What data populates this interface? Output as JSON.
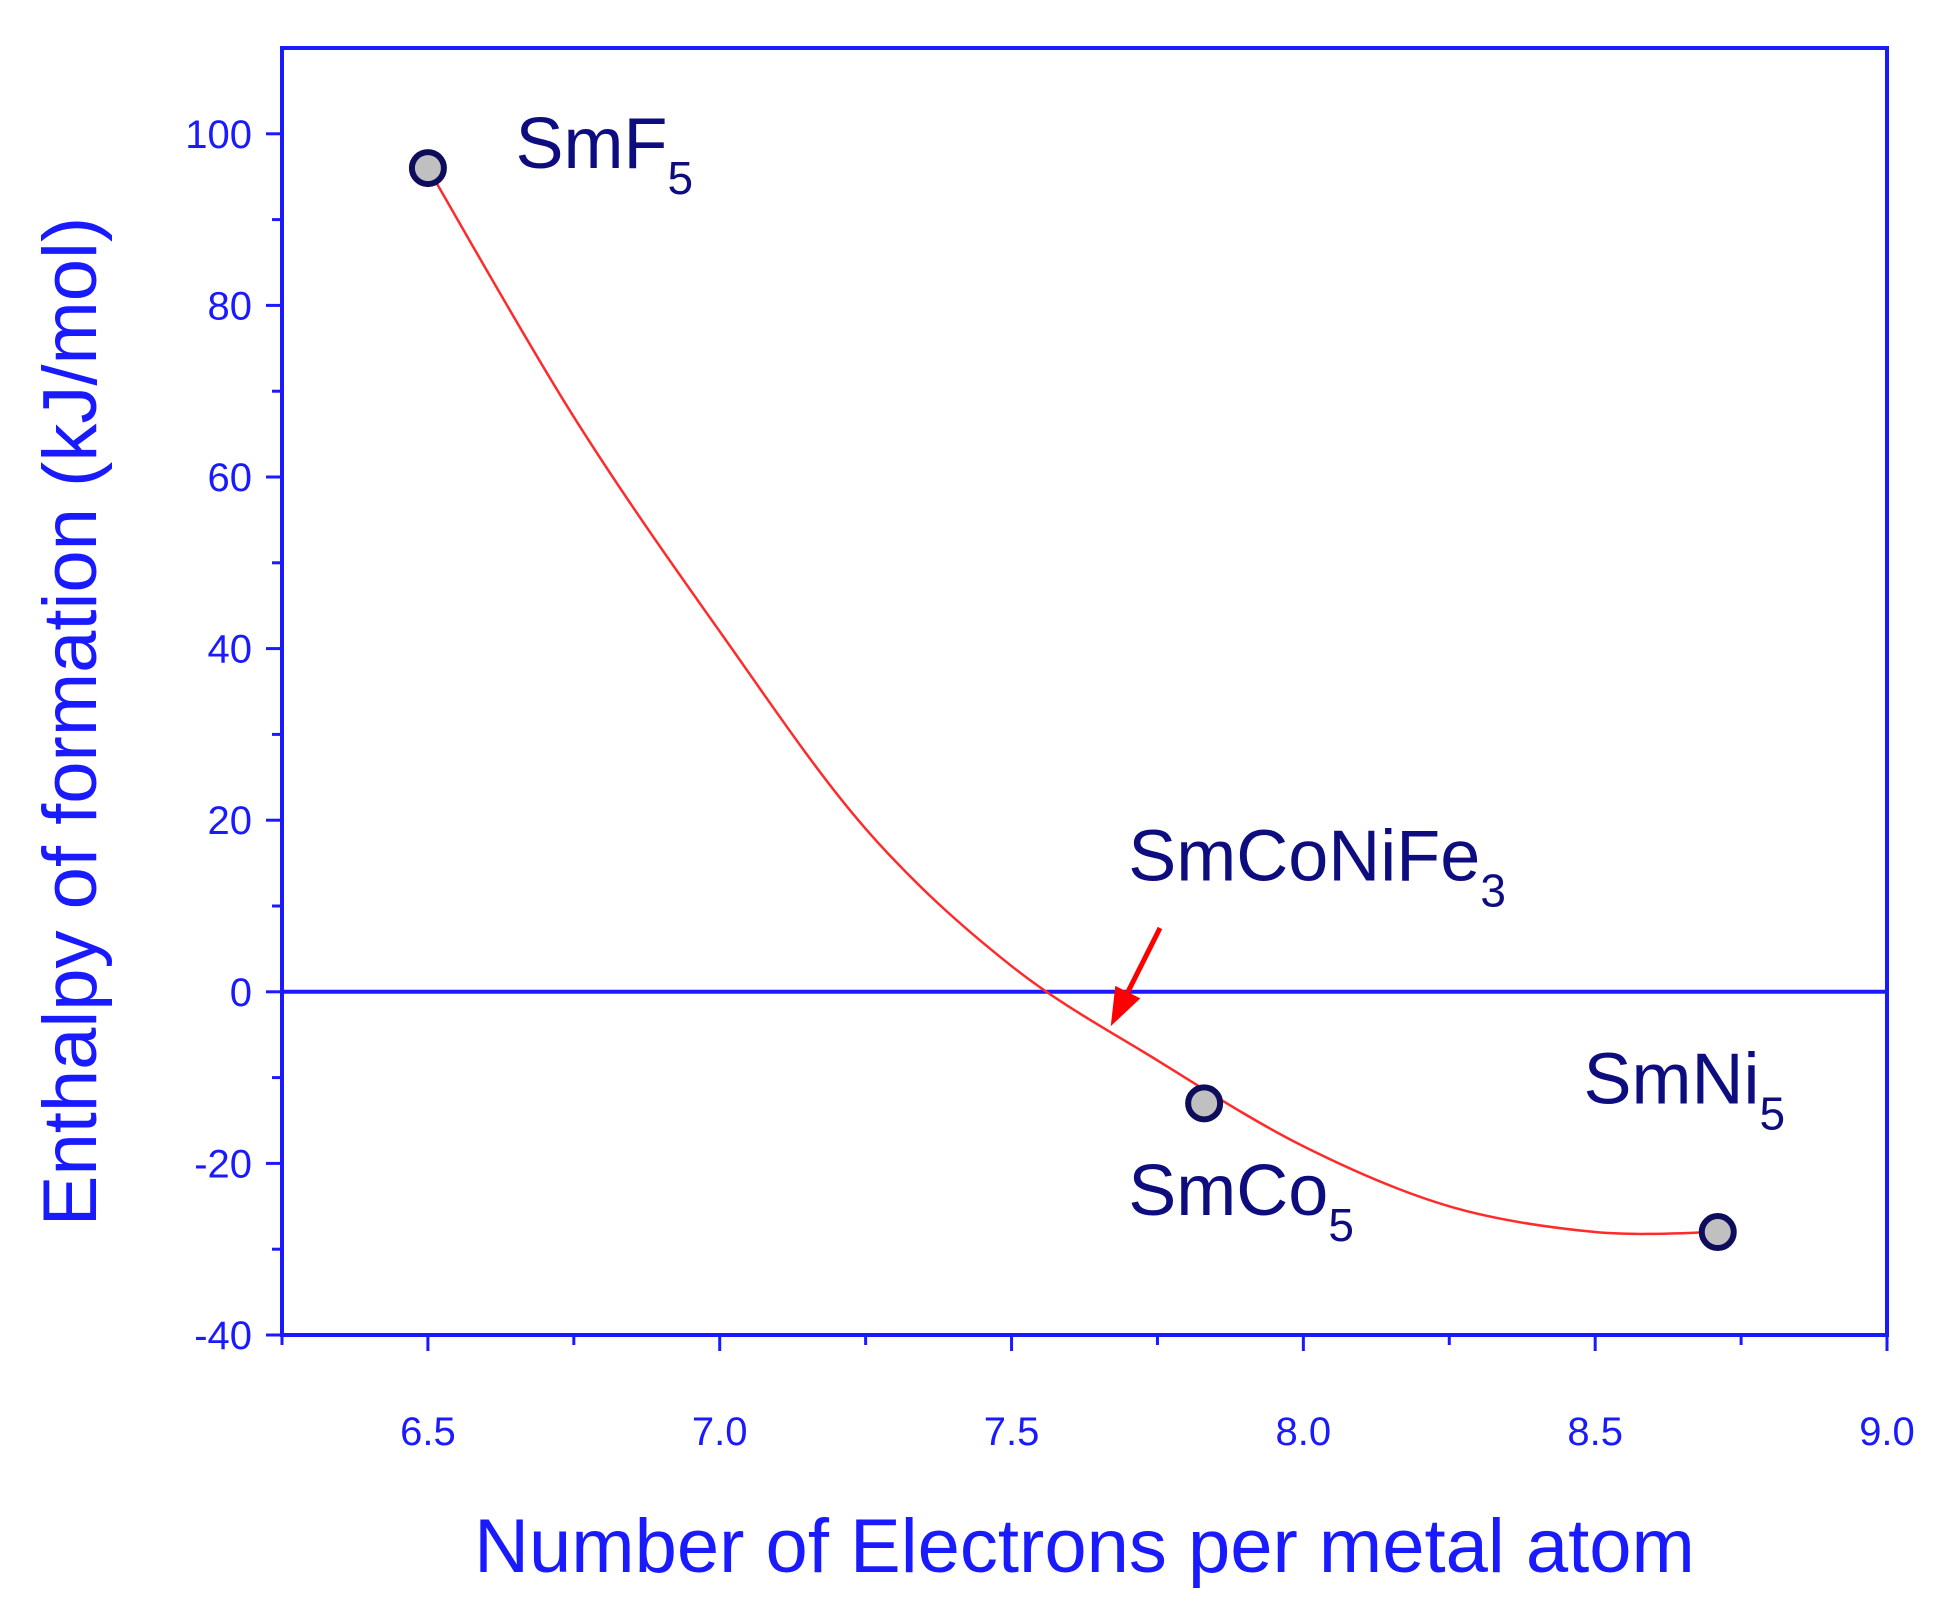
{
  "colors": {
    "axis": "#1a1aff",
    "curve": "#ff2a2a",
    "marker_fill": "#c0c0c0",
    "marker_edge": "#0d0d5c",
    "annotation": "#0d0d80",
    "arrow": "#ff0000"
  },
  "chart_data": {
    "type": "scatter",
    "xlabel": "Number of Electrons per metal atom",
    "ylabel": "Enthalpy of formation (kJ/mol)",
    "xlim": [
      6.25,
      9.0
    ],
    "ylim": [
      -40,
      110
    ],
    "xticks": [
      6.5,
      7.0,
      7.5,
      8.0,
      8.5,
      9.0
    ],
    "xtick_labels": [
      "6.5",
      "7.0",
      "7.5",
      "8.0",
      "8.5",
      "9.0"
    ],
    "yticks": [
      -40,
      -20,
      0,
      20,
      40,
      60,
      80,
      100
    ],
    "ytick_labels": [
      "-40",
      "-20",
      "0",
      "20",
      "40",
      "60",
      "80",
      "100"
    ],
    "grid": false,
    "reference_line_y": 0,
    "series": [
      {
        "marker": "circle",
        "x": [
          6.5,
          7.83,
          8.71
        ],
        "y": [
          96,
          -13,
          -28
        ]
      }
    ],
    "fit_curve": {
      "type": "quadratic-smooth",
      "x": [
        6.5,
        6.75,
        7.0,
        7.25,
        7.5,
        7.75,
        8.0,
        8.25,
        8.5,
        8.71
      ],
      "y": [
        96,
        67,
        42,
        19,
        3,
        -8,
        -18,
        -25,
        -28,
        -28
      ]
    },
    "annotations": [
      {
        "base": "SmF",
        "sub": "5",
        "x": 6.65,
        "y": 96
      },
      {
        "base": "SmCo",
        "sub": "5",
        "x": 7.7,
        "y": -26
      },
      {
        "base": "SmNi",
        "sub": "5",
        "x": 8.48,
        "y": -13
      },
      {
        "base": "SmCoNiFe",
        "sub": "3",
        "x": 7.7,
        "y": 13,
        "arrow_to": {
          "x": 7.67,
          "y": -4
        }
      }
    ]
  }
}
